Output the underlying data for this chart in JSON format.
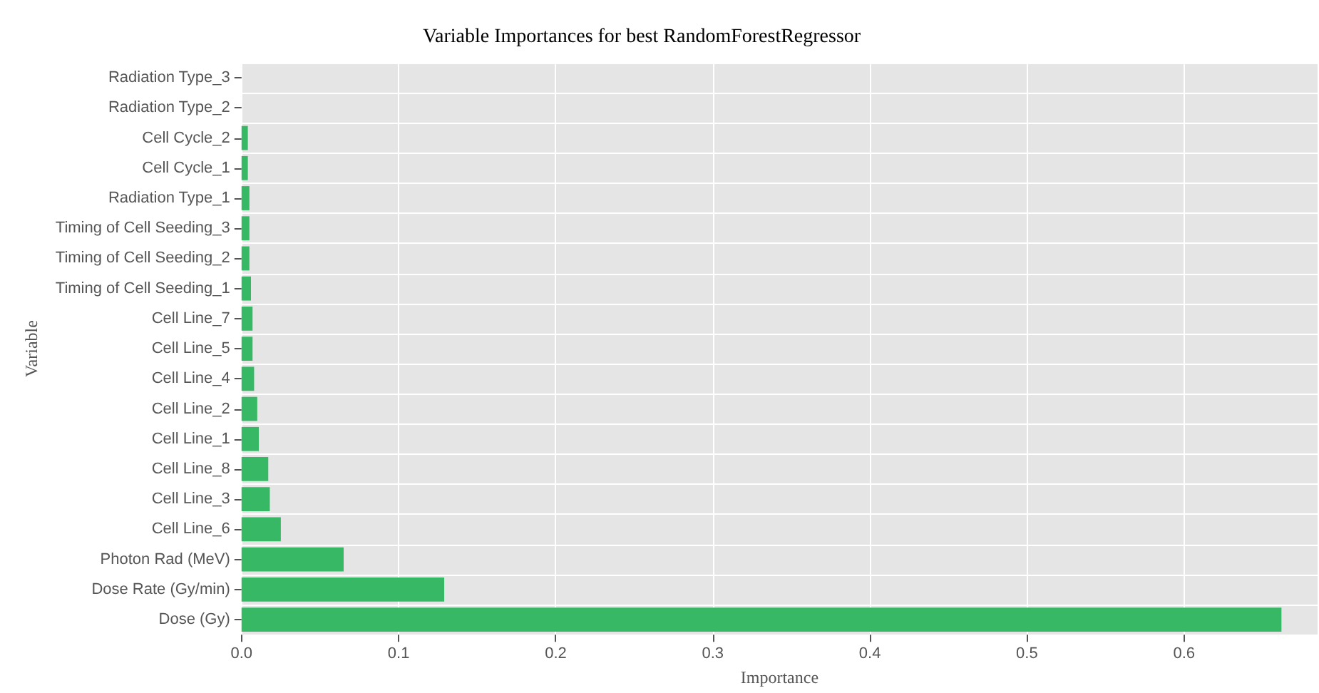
{
  "chart_data": {
    "type": "bar",
    "orientation": "horizontal",
    "title": "Variable Importances for best RandomForestRegressor",
    "xlabel": "Importance",
    "ylabel": "Variable",
    "categories": [
      "Radiation Type_3",
      "Radiation Type_2",
      "Cell Cycle_2",
      "Cell Cycle_1",
      "Radiation Type_1",
      "Timing of Cell Seeding_3",
      "Timing of Cell Seeding_2",
      "Timing of Cell Seeding_1",
      "Cell Line_7",
      "Cell Line_5",
      "Cell Line_4",
      "Cell Line_2",
      "Cell Line_1",
      "Cell Line_8",
      "Cell Line_3",
      "Cell Line_6",
      "Photon Rad (MeV)",
      "Dose Rate (Gy/min)",
      "Dose (Gy)"
    ],
    "values": [
      0,
      0,
      0.004,
      0.004,
      0.005,
      0.005,
      0.005,
      0.006,
      0.007,
      0.007,
      0.008,
      0.01,
      0.011,
      0.017,
      0.018,
      0.025,
      0.065,
      0.129,
      0.662
    ],
    "color": "#36b864",
    "xlim": [
      0,
      0.685
    ],
    "xticks": [
      {
        "value": 0,
        "label": "0.0"
      },
      0.1,
      0.2,
      0.3,
      0.4,
      0.5,
      0.6
    ],
    "grid": true
  }
}
